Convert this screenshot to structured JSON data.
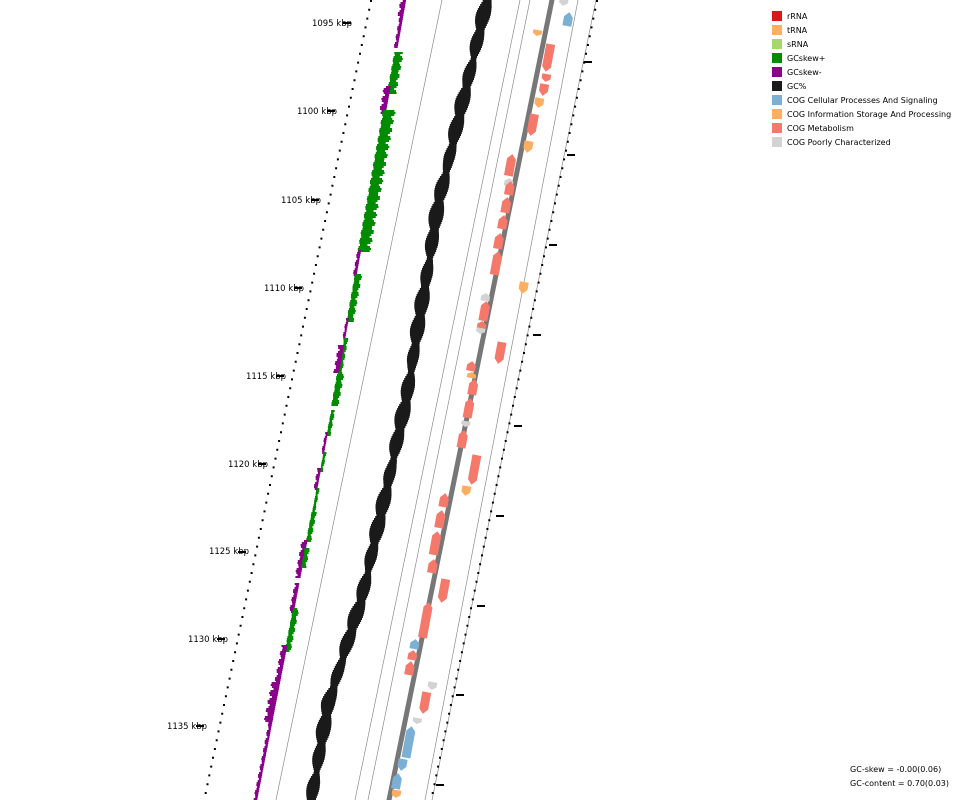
{
  "legend": [
    {
      "label": "rRNA",
      "color": "#d7191c"
    },
    {
      "label": "tRNA",
      "color": "#fdae61"
    },
    {
      "label": "sRNA",
      "color": "#a6d96a"
    },
    {
      "label": "GCskew+",
      "color": "#008b00"
    },
    {
      "label": "GCskew-",
      "color": "#8b008b"
    },
    {
      "label": "GC%",
      "color": "#1a1a1a"
    },
    {
      "label": "COG Cellular Processes And Signaling",
      "color": "#7bafd4"
    },
    {
      "label": "COG Information Storage And Processing",
      "color": "#fdae61"
    },
    {
      "label": "COG Metabolism",
      "color": "#f4796b"
    },
    {
      "label": "COG Poorly Characterized",
      "color": "#d3d3d3"
    }
  ],
  "scale": {
    "labels": [
      "1095 kbp",
      "1100 kbp",
      "1105 kbp",
      "1110 kbp",
      "1115 kbp",
      "1120 kbp",
      "1125 kbp",
      "1130 kbp",
      "1135 kbp"
    ]
  },
  "stats": {
    "gc_skew": "GC-skew = -0.00(0.06)",
    "gc_content": "GC-content = 0.70(0.03)"
  }
}
